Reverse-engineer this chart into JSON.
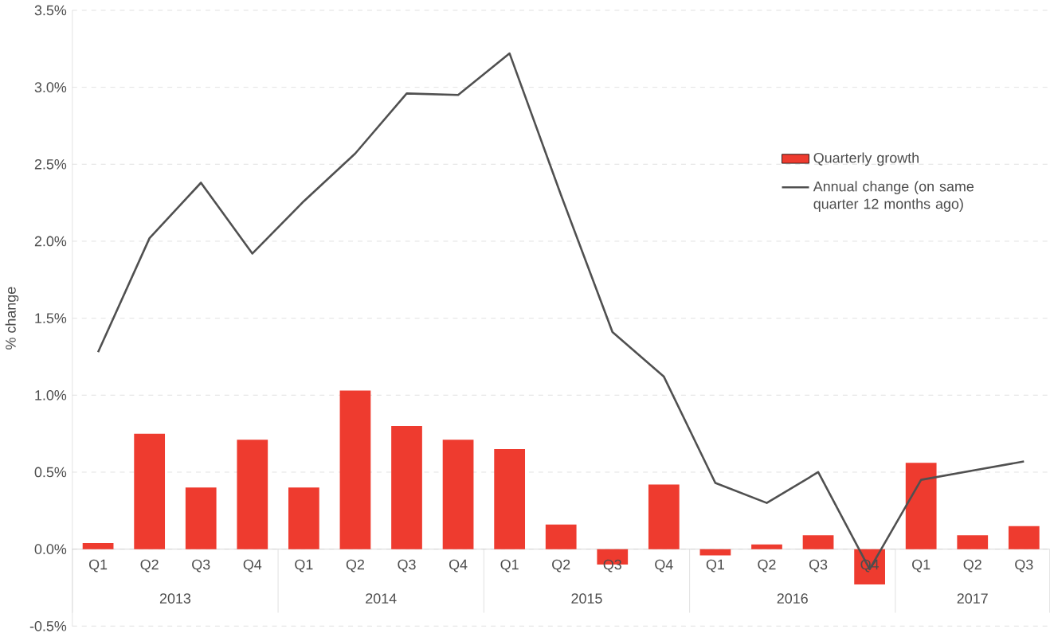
{
  "chart_data": {
    "type": "bar",
    "ylabel": "% change",
    "categories": [
      "Q1",
      "Q2",
      "Q3",
      "Q4",
      "Q1",
      "Q2",
      "Q3",
      "Q4",
      "Q1",
      "Q2",
      "Q3",
      "Q4",
      "Q1",
      "Q2",
      "Q3",
      "Q4",
      "Q1",
      "Q2",
      "Q3"
    ],
    "series": [
      {
        "name": "Quarterly growth",
        "color": "#ee3b2f",
        "values": [
          0.04,
          0.75,
          0.4,
          0.71,
          0.4,
          1.03,
          0.8,
          0.71,
          0.65,
          0.16,
          -0.1,
          0.42,
          -0.04,
          0.03,
          0.09,
          -0.23,
          0.56,
          0.09,
          0.15
        ]
      },
      {
        "name": "Annual change (on same quarter 12 months ago)",
        "type": "line",
        "color": "#505050",
        "values": [
          1.28,
          2.02,
          2.38,
          1.92,
          2.26,
          2.57,
          2.96,
          2.95,
          3.22,
          2.3,
          1.41,
          1.12,
          0.43,
          0.3,
          0.5,
          -0.13,
          0.45,
          0.51,
          0.57
        ]
      }
    ],
    "annotations": [
      "2013",
      "2014",
      "2015",
      "2016",
      "2017"
    ],
    "ylim": [
      -0.5,
      3.5
    ],
    "yticks": [
      {
        "value": -0.5,
        "label": "-0.5%"
      },
      {
        "value": 0,
        "label": "0.0%"
      },
      {
        "value": 0.5,
        "label": "0.5%"
      },
      {
        "value": 1,
        "label": "1.0%"
      },
      {
        "value": 1.5,
        "label": "1.5%"
      },
      {
        "value": 2,
        "label": "2.0%"
      },
      {
        "value": 2.5,
        "label": "2.5%"
      },
      {
        "value": 3,
        "label": "3.0%"
      },
      {
        "value": 3.5,
        "label": "3.5%"
      }
    ],
    "grid": "y",
    "legend": "top right",
    "marker": "none",
    "line_style": "solid"
  }
}
